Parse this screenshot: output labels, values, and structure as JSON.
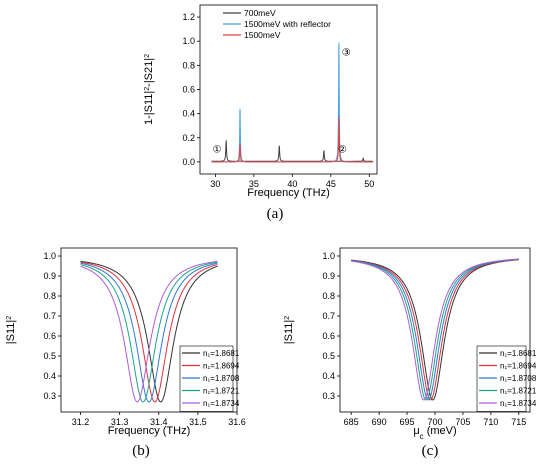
{
  "panels": [
    {
      "panel_label": "(a)",
      "type": "line",
      "title": "",
      "xlabel": "Frequency (THz)",
      "ylabel_html": "1-|S11|<tspan baseline-shift='super' font-size='7'>2</tspan>-|S21|<tspan baseline-shift='super' font-size='7'>2</tspan>",
      "xlim": [
        28,
        51
      ],
      "ylim": [
        -0.1,
        1.3
      ],
      "xticks": [
        30,
        35,
        40,
        45,
        50
      ],
      "yticks": [
        0.0,
        0.2,
        0.4,
        0.6,
        0.8,
        1.0,
        1.2
      ],
      "ytick_decimals": 1,
      "legend_position": "top-left",
      "series": [
        {
          "name": "700meV",
          "color": "#404040",
          "baseline": 0.005,
          "peaks": [
            [
              31.4,
              0.17,
              0.06
            ],
            [
              38.3,
              0.13,
              0.06
            ],
            [
              44.1,
              0.09,
              0.06
            ],
            [
              49.2,
              0.025,
              0.06
            ]
          ]
        },
        {
          "name": "1500meV with reflector",
          "color": "#4aa3df",
          "baseline": 0.0,
          "peaks": [
            [
              33.2,
              0.45,
              0.05
            ],
            [
              46.05,
              1.0,
              0.05
            ]
          ]
        },
        {
          "name": "1500meV",
          "color": "#e8413f",
          "baseline": 0.0,
          "peaks": [
            [
              33.2,
              0.15,
              0.05
            ],
            [
              46.05,
              0.37,
              0.05
            ]
          ]
        }
      ],
      "annotations": [
        {
          "text": "①",
          "x": 30.2,
          "y": 0.08
        },
        {
          "text": "②",
          "x": 46.5,
          "y": 0.08
        },
        {
          "text": "③",
          "x": 47.0,
          "y": 0.88
        }
      ]
    },
    {
      "panel_label": "(b)",
      "type": "line",
      "title": "",
      "xlabel": "Frequency (THz)",
      "ylabel_html": "|S11|<tspan baseline-shift='super' font-size='7'>2</tspan>",
      "xlim": [
        31.15,
        31.6
      ],
      "ylim": [
        0.22,
        1.04
      ],
      "xticks": [
        31.2,
        31.3,
        31.4,
        31.5,
        31.6
      ],
      "yticks": [
        0.3,
        0.4,
        0.5,
        0.6,
        0.7,
        0.8,
        0.9,
        1.0
      ],
      "ytick_decimals": 1,
      "legend_position": "bottom-right",
      "x_range": [
        31.2,
        31.55
      ],
      "curve_depth": 0.73,
      "curve_halfwidth": 0.04,
      "curve_top": 1.0,
      "series": [
        {
          "name": "n₁=1.8681",
          "color": "#333333",
          "center": 31.405
        },
        {
          "name": "n₁=1.8694",
          "color": "#e0303a",
          "center": 31.39
        },
        {
          "name": "n₁=1.8708",
          "color": "#2f78d0",
          "center": 31.375
        },
        {
          "name": "n₁=1.8721",
          "color": "#1aa38a",
          "center": 31.36
        },
        {
          "name": "n₁=1.8734",
          "color": "#b05cd8",
          "center": 31.345
        }
      ]
    },
    {
      "panel_label": "(c)",
      "type": "line",
      "title": "",
      "xlabel_html": "μ<tspan baseline-shift='sub' font-size='8'>c</tspan> (meV)",
      "ylabel_html": "|S11|<tspan baseline-shift='super' font-size='7'>2</tspan>",
      "xlim": [
        683,
        717
      ],
      "ylim": [
        0.22,
        1.04
      ],
      "xticks": [
        685,
        690,
        695,
        700,
        705,
        710,
        715
      ],
      "yticks": [
        0.3,
        0.4,
        0.5,
        0.6,
        0.7,
        0.8,
        0.9,
        1.0
      ],
      "ytick_decimals": 1,
      "legend_position": "bottom-right",
      "x_range": [
        685,
        715
      ],
      "curve_depth": 0.72,
      "curve_halfwidth": 2.5,
      "curve_top": 1.0,
      "series": [
        {
          "name": "n₁=1.8681",
          "color": "#333333",
          "center": 699.6
        },
        {
          "name": "n₁=1.8694",
          "color": "#e0303a",
          "center": 699.2
        },
        {
          "name": "n₁=1.8708",
          "color": "#2f78d0",
          "center": 698.8
        },
        {
          "name": "n₁=1.8721",
          "color": "#1aa38a",
          "center": 698.4
        },
        {
          "name": "n₁=1.8734",
          "color": "#b05cd8",
          "center": 698.0
        }
      ]
    }
  ]
}
